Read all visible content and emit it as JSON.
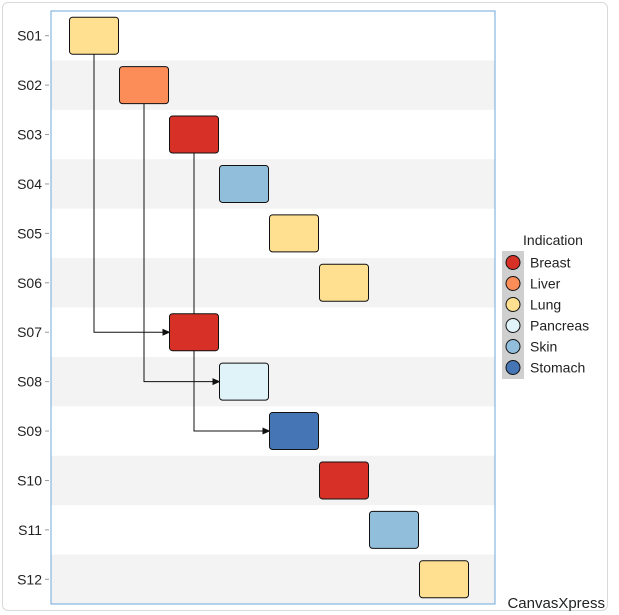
{
  "chart_data": {
    "type": "gantt",
    "rows": [
      "S01",
      "S02",
      "S03",
      "S04",
      "S05",
      "S06",
      "S07",
      "S08",
      "S09",
      "S10",
      "S11",
      "S12"
    ],
    "tasks": [
      {
        "id": "S01",
        "indication": "Lung",
        "start": 1,
        "end": 2
      },
      {
        "id": "S02",
        "indication": "Liver",
        "start": 2,
        "end": 3
      },
      {
        "id": "S03",
        "indication": "Breast",
        "start": 3,
        "end": 4
      },
      {
        "id": "S04",
        "indication": "Skin",
        "start": 4,
        "end": 5
      },
      {
        "id": "S05",
        "indication": "Lung",
        "start": 5,
        "end": 6
      },
      {
        "id": "S06",
        "indication": "Lung",
        "start": 6,
        "end": 7
      },
      {
        "id": "S07",
        "indication": "Breast",
        "start": 3,
        "end": 4
      },
      {
        "id": "S08",
        "indication": "Pancreas",
        "start": 4,
        "end": 5
      },
      {
        "id": "S09",
        "indication": "Stomach",
        "start": 5,
        "end": 6
      },
      {
        "id": "S10",
        "indication": "Breast",
        "start": 6,
        "end": 7
      },
      {
        "id": "S11",
        "indication": "Skin",
        "start": 7,
        "end": 8
      },
      {
        "id": "S12",
        "indication": "Lung",
        "start": 8,
        "end": 9
      }
    ],
    "dependencies": [
      {
        "from": "S01",
        "to": "S07"
      },
      {
        "from": "S02",
        "to": "S08"
      },
      {
        "from": "S03",
        "to": "S09"
      }
    ],
    "xlim": [
      1,
      10
    ],
    "legend": {
      "title": "Indication",
      "placement": "right",
      "items": [
        {
          "label": "Breast",
          "color": "#d73027"
        },
        {
          "label": "Liver",
          "color": "#fc8d59"
        },
        {
          "label": "Lung",
          "color": "#fee090"
        },
        {
          "label": "Pancreas",
          "color": "#e0f3f8"
        },
        {
          "label": "Skin",
          "color": "#91bfdb"
        },
        {
          "label": "Stomach",
          "color": "#4575b4"
        }
      ]
    },
    "stripe_color": "#f3f3f3",
    "frame_color": "#6fa8dc"
  },
  "branding": {
    "text": "CanvasXpress"
  }
}
